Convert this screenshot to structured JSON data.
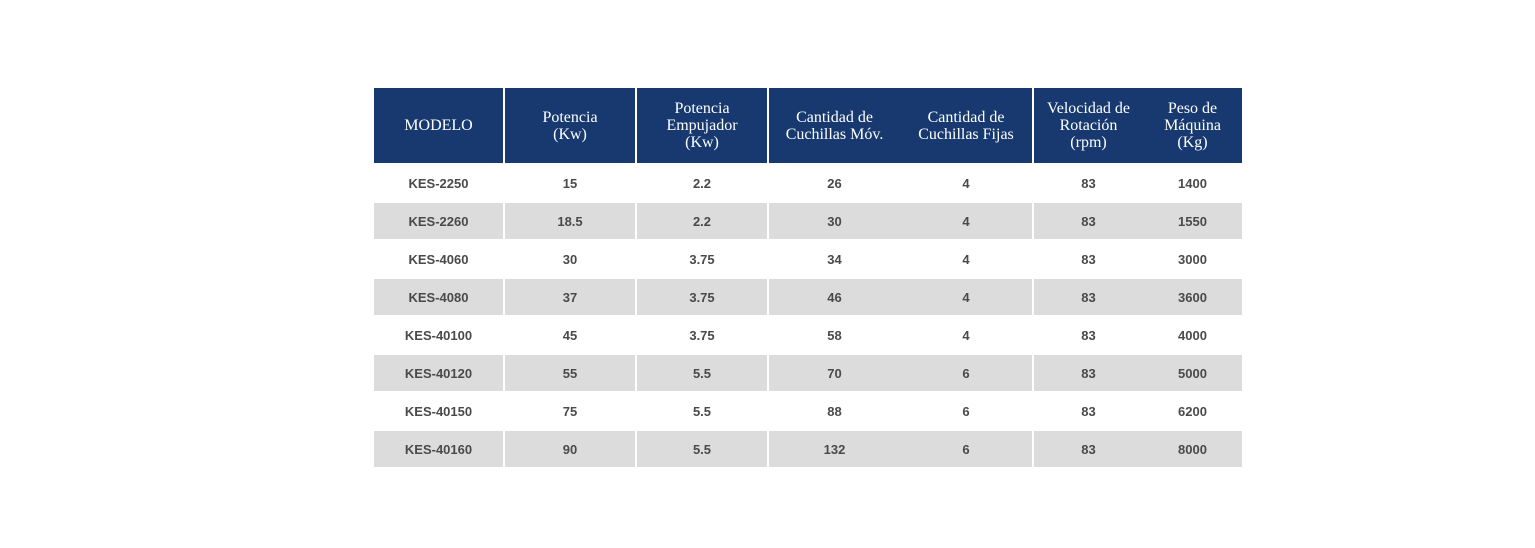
{
  "table": {
    "headers": [
      "MODELO",
      "Potencia\n(Kw)",
      "Potencia\nEmpujador\n(Kw)",
      "Cantidad de\nCuchillas Móv.",
      "Cantidad de\nCuchillas Fijas",
      "Velocidad de\nRotación\n(rpm)",
      "Peso de\nMáquina\n(Kg)"
    ],
    "rows": [
      [
        "KES-2250",
        "15",
        "2.2",
        "26",
        "4",
        "83",
        "1400"
      ],
      [
        "KES-2260",
        "18.5",
        "2.2",
        "30",
        "4",
        "83",
        "1550"
      ],
      [
        "KES-4060",
        "30",
        "3.75",
        "34",
        "4",
        "83",
        "3000"
      ],
      [
        "KES-4080",
        "37",
        "3.75",
        "46",
        "4",
        "83",
        "3600"
      ],
      [
        "KES-40100",
        "45",
        "3.75",
        "58",
        "4",
        "83",
        "4000"
      ],
      [
        "KES-40120",
        "55",
        "5.5",
        "70",
        "6",
        "83",
        "5000"
      ],
      [
        "KES-40150",
        "75",
        "5.5",
        "88",
        "6",
        "83",
        "6200"
      ],
      [
        "KES-40160",
        "90",
        "5.5",
        "132",
        "6",
        "83",
        "8000"
      ]
    ],
    "colors": {
      "header_bg": "#17396f",
      "header_text": "#ffffff",
      "row_alt_bg": "#dcdcdc",
      "cell_text": "#4a4a4a"
    }
  }
}
